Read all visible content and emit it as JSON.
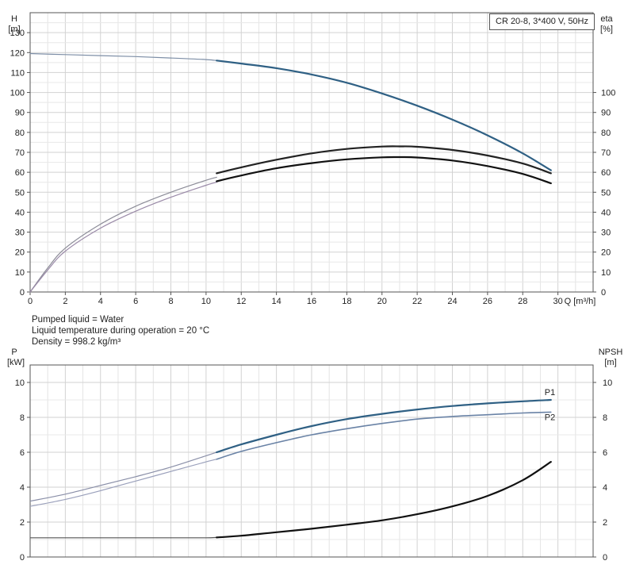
{
  "info": {
    "pumped_liquid": "Pumped liquid = Water",
    "liquid_temperature": "Liquid temperature during operation = 20 °C",
    "density": "Density = 998.2 kg/m³"
  },
  "chart_data": [
    {
      "type": "line",
      "title": "CR 20-8, 3*400 V, 50Hz",
      "ylabel_left_name": "H",
      "ylabel_left_unit": "[m]",
      "ylabel_right_name": "eta",
      "ylabel_right_unit": "[%]",
      "xlabel": "Q [m³/h]",
      "xlim": [
        0,
        32
      ],
      "ylim": [
        0,
        140
      ],
      "x_ticks": [
        0,
        2,
        4,
        6,
        8,
        10,
        12,
        14,
        16,
        18,
        20,
        22,
        24,
        26,
        28,
        30
      ],
      "y_left_ticks": [
        0,
        10,
        20,
        30,
        40,
        50,
        60,
        70,
        80,
        90,
        100,
        110,
        120,
        130
      ],
      "y_right_ticks": [
        0,
        10,
        20,
        30,
        40,
        50,
        60,
        70,
        80,
        90,
        100
      ],
      "grid": true,
      "series": [
        {
          "role": "H-dashed",
          "color": "#7d8ea6",
          "x": [
            0,
            2,
            4,
            6,
            8,
            10,
            10.6
          ],
          "y": [
            119.5,
            119,
            118.5,
            118,
            117.3,
            116.5,
            116
          ]
        },
        {
          "role": "H",
          "color": "#2f6084",
          "x": [
            10.6,
            12,
            14,
            16,
            18,
            20,
            22,
            24,
            26,
            28,
            29.6
          ],
          "y": [
            116,
            114.5,
            112.2,
            109,
            104.9,
            99.5,
            93.4,
            86.4,
            78.5,
            69.5,
            61
          ]
        },
        {
          "role": "eta-upper-dashed",
          "color": "#8c8c98",
          "x": [
            0,
            1,
            2,
            4,
            6,
            8,
            10,
            10.6
          ],
          "y": [
            0,
            12,
            22,
            34,
            43,
            50,
            56,
            57.5
          ]
        },
        {
          "role": "eta-upper",
          "color": "#222222",
          "x": [
            10.6,
            12,
            14,
            16,
            18,
            20,
            21,
            22,
            24,
            26,
            28,
            29.6
          ],
          "y": [
            59.5,
            62.5,
            66.3,
            69.5,
            71.7,
            72.9,
            73,
            72.8,
            71.2,
            68.4,
            64.4,
            59.5
          ]
        },
        {
          "role": "eta-lower-dashed",
          "color": "#9a8aa8",
          "x": [
            0,
            1,
            2,
            4,
            6,
            8,
            10,
            10.6
          ],
          "y": [
            0,
            11,
            20.5,
            32,
            40.5,
            47.5,
            53.5,
            55
          ]
        },
        {
          "role": "eta",
          "color": "#111111",
          "x": [
            10.6,
            12,
            14,
            16,
            18,
            20,
            21,
            22,
            24,
            26,
            28,
            29.6
          ],
          "y": [
            55.5,
            58.4,
            62,
            64.6,
            66.5,
            67.5,
            67.6,
            67.4,
            65.9,
            63.1,
            59.2,
            54.5
          ]
        }
      ]
    },
    {
      "type": "line",
      "ylabel_left_name": "P",
      "ylabel_left_unit": "[kW]",
      "ylabel_right_name": "NPSH",
      "ylabel_right_unit": "[m]",
      "xlim": [
        0,
        32
      ],
      "ylim": [
        0,
        11
      ],
      "y_left_ticks": [
        0,
        2,
        4,
        6,
        8,
        10
      ],
      "y_right_ticks": [
        0,
        2,
        4,
        6,
        8,
        10
      ],
      "grid": true,
      "series": [
        {
          "name": "P1",
          "color": "#2f6084",
          "x": [
            0,
            2,
            4,
            6,
            8,
            10,
            10.6,
            12,
            14,
            16,
            18,
            20,
            22,
            24,
            26,
            28,
            29.6
          ],
          "y": [
            3.2,
            3.6,
            4.1,
            4.6,
            5.15,
            5.8,
            6.0,
            6.45,
            7.0,
            7.5,
            7.9,
            8.2,
            8.45,
            8.65,
            8.8,
            8.92,
            9.0
          ]
        },
        {
          "name": "P2",
          "color": "#6a83a6",
          "x": [
            0,
            2,
            4,
            6,
            8,
            10,
            10.6,
            12,
            14,
            16,
            18,
            20,
            22,
            24,
            26,
            28,
            29.6
          ],
          "y": [
            2.9,
            3.3,
            3.8,
            4.35,
            4.9,
            5.45,
            5.6,
            6.05,
            6.55,
            7.0,
            7.35,
            7.65,
            7.9,
            8.05,
            8.15,
            8.25,
            8.3
          ]
        },
        {
          "role": "NPSH",
          "color": "#111111",
          "x": [
            0,
            2,
            4,
            6,
            8,
            10,
            10.6,
            12,
            14,
            16,
            18,
            20,
            22,
            24,
            26,
            28,
            29.6
          ],
          "y": [
            1.1,
            1.1,
            1.1,
            1.1,
            1.1,
            1.1,
            1.12,
            1.22,
            1.42,
            1.62,
            1.85,
            2.1,
            2.45,
            2.9,
            3.5,
            4.4,
            5.45
          ]
        }
      ]
    }
  ]
}
